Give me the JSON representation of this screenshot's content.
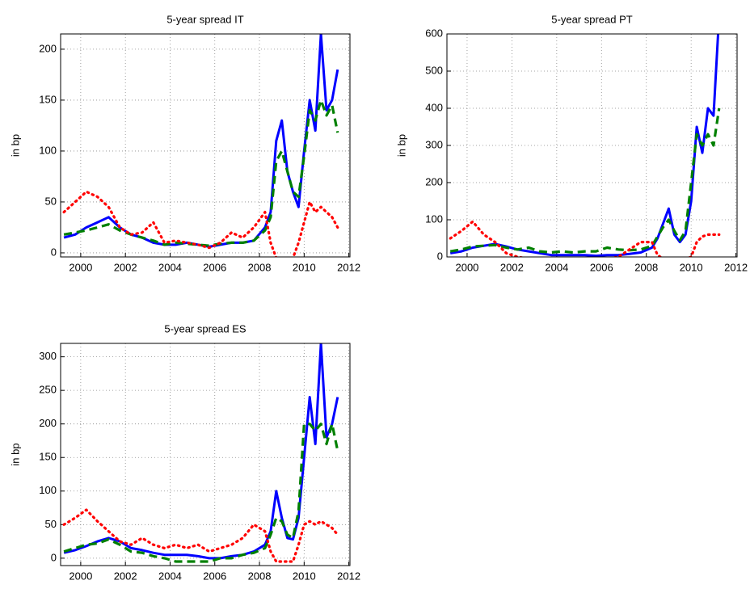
{
  "chart_data": [
    {
      "type": "line",
      "title": "5-year spread IT",
      "ylabel": "in bp",
      "x": [
        1999.25,
        1999.75,
        2000.25,
        2000.75,
        2001.25,
        2001.75,
        2002.25,
        2002.75,
        2003.25,
        2003.75,
        2004.25,
        2004.75,
        2005.25,
        2005.75,
        2006.25,
        2006.75,
        2007.25,
        2007.75,
        2008.25,
        2008.5,
        2008.75,
        2009.0,
        2009.25,
        2009.5,
        2009.75,
        2010.0,
        2010.25,
        2010.5,
        2010.75,
        2011.0,
        2011.25,
        2011.5
      ],
      "series": [
        {
          "color": "#0000ff",
          "style": "solid",
          "values": [
            15,
            18,
            25,
            30,
            35,
            25,
            18,
            15,
            10,
            8,
            8,
            10,
            8,
            6,
            8,
            10,
            10,
            12,
            25,
            40,
            110,
            130,
            80,
            60,
            45,
            100,
            150,
            120,
            215,
            140,
            150,
            180
          ]
        },
        {
          "color": "#008000",
          "style": "dashed",
          "values": [
            18,
            20,
            22,
            25,
            28,
            22,
            18,
            15,
            12,
            8,
            10,
            9,
            8,
            7,
            9,
            10,
            10,
            12,
            22,
            35,
            90,
            100,
            80,
            60,
            55,
            95,
            140,
            130,
            150,
            135,
            145,
            118
          ]
        },
        {
          "color": "#ff0000",
          "style": "dotted",
          "values": [
            40,
            50,
            60,
            55,
            45,
            25,
            18,
            20,
            30,
            10,
            12,
            10,
            8,
            5,
            10,
            20,
            15,
            25,
            40,
            10,
            -5,
            -5,
            -5,
            -5,
            10,
            30,
            50,
            40,
            45,
            40,
            35,
            25
          ]
        }
      ],
      "xlim": [
        1999.1,
        2012.05
      ],
      "xticks": [
        2000,
        2002,
        2004,
        2006,
        2008,
        2010,
        2012
      ],
      "ylim": [
        -4,
        215
      ],
      "yticks": [
        0,
        50,
        100,
        150,
        200
      ],
      "grid": true
    },
    {
      "type": "line",
      "title": "5-year spread PT",
      "ylabel": "in bp",
      "x": [
        1999.25,
        1999.75,
        2000.25,
        2000.75,
        2001.25,
        2001.75,
        2002.25,
        2002.75,
        2003.25,
        2003.75,
        2004.25,
        2004.75,
        2005.25,
        2005.75,
        2006.25,
        2006.75,
        2007.25,
        2007.75,
        2008.25,
        2008.5,
        2008.75,
        2009.0,
        2009.25,
        2009.5,
        2009.75,
        2010.0,
        2010.25,
        2010.5,
        2010.75,
        2011.0,
        2011.25,
        2011.5
      ],
      "series": [
        {
          "color": "#0000ff",
          "style": "solid",
          "values": [
            10,
            15,
            25,
            30,
            35,
            28,
            20,
            15,
            10,
            5,
            5,
            5,
            5,
            3,
            5,
            5,
            8,
            12,
            25,
            50,
            90,
            130,
            60,
            40,
            60,
            150,
            350,
            280,
            400,
            380,
            650,
            null
          ]
        },
        {
          "color": "#008000",
          "style": "dashed",
          "values": [
            15,
            20,
            28,
            30,
            32,
            25,
            20,
            25,
            15,
            12,
            15,
            12,
            15,
            15,
            25,
            20,
            18,
            20,
            30,
            55,
            80,
            100,
            70,
            45,
            70,
            200,
            330,
            300,
            330,
            300,
            400,
            null
          ]
        },
        {
          "color": "#ff0000",
          "style": "dotted",
          "values": [
            50,
            70,
            95,
            60,
            40,
            10,
            0,
            -5,
            -5,
            -5,
            -5,
            -5,
            -5,
            -5,
            -5,
            0,
            20,
            40,
            40,
            5,
            -5,
            -5,
            -5,
            -5,
            -5,
            0,
            40,
            55,
            60,
            60,
            60,
            null
          ]
        }
      ],
      "xlim": [
        1999.1,
        2012.05
      ],
      "xticks": [
        2000,
        2002,
        2004,
        2006,
        2008,
        2010,
        2012
      ],
      "ylim": [
        0,
        600
      ],
      "yticks": [
        0,
        100,
        200,
        300,
        400,
        500,
        600
      ],
      "grid": true
    },
    {
      "type": "line",
      "title": "5-year spread ES",
      "ylabel": "in bp",
      "x": [
        1999.25,
        1999.75,
        2000.25,
        2000.75,
        2001.25,
        2001.75,
        2002.25,
        2002.75,
        2003.25,
        2003.75,
        2004.25,
        2004.75,
        2005.25,
        2005.75,
        2006.25,
        2006.75,
        2007.25,
        2007.75,
        2008.25,
        2008.5,
        2008.75,
        2009.0,
        2009.25,
        2009.5,
        2009.75,
        2010.0,
        2010.25,
        2010.5,
        2010.75,
        2011.0,
        2011.25,
        2011.5
      ],
      "series": [
        {
          "color": "#0000ff",
          "style": "solid",
          "values": [
            8,
            12,
            18,
            25,
            30,
            25,
            15,
            12,
            8,
            5,
            5,
            5,
            3,
            0,
            0,
            3,
            5,
            10,
            20,
            40,
            100,
            60,
            30,
            28,
            60,
            150,
            240,
            170,
            320,
            180,
            200,
            240
          ]
        },
        {
          "color": "#008000",
          "style": "dashed",
          "values": [
            10,
            15,
            20,
            22,
            28,
            20,
            10,
            8,
            3,
            0,
            -5,
            -5,
            -5,
            -5,
            0,
            0,
            5,
            8,
            15,
            35,
            60,
            55,
            35,
            30,
            70,
            200,
            200,
            190,
            200,
            170,
            200,
            160
          ]
        },
        {
          "color": "#ff0000",
          "style": "dotted",
          "values": [
            50,
            60,
            72,
            55,
            40,
            25,
            20,
            30,
            20,
            15,
            20,
            15,
            20,
            10,
            15,
            20,
            30,
            50,
            40,
            10,
            -5,
            -5,
            -5,
            -5,
            20,
            50,
            55,
            50,
            55,
            50,
            45,
            35
          ]
        }
      ],
      "xlim": [
        1999.1,
        2012.05
      ],
      "xticks": [
        2000,
        2002,
        2004,
        2006,
        2008,
        2010,
        2012
      ],
      "ylim": [
        -11,
        320
      ],
      "yticks": [
        0,
        50,
        100,
        150,
        200,
        250,
        300
      ],
      "grid": true
    }
  ]
}
